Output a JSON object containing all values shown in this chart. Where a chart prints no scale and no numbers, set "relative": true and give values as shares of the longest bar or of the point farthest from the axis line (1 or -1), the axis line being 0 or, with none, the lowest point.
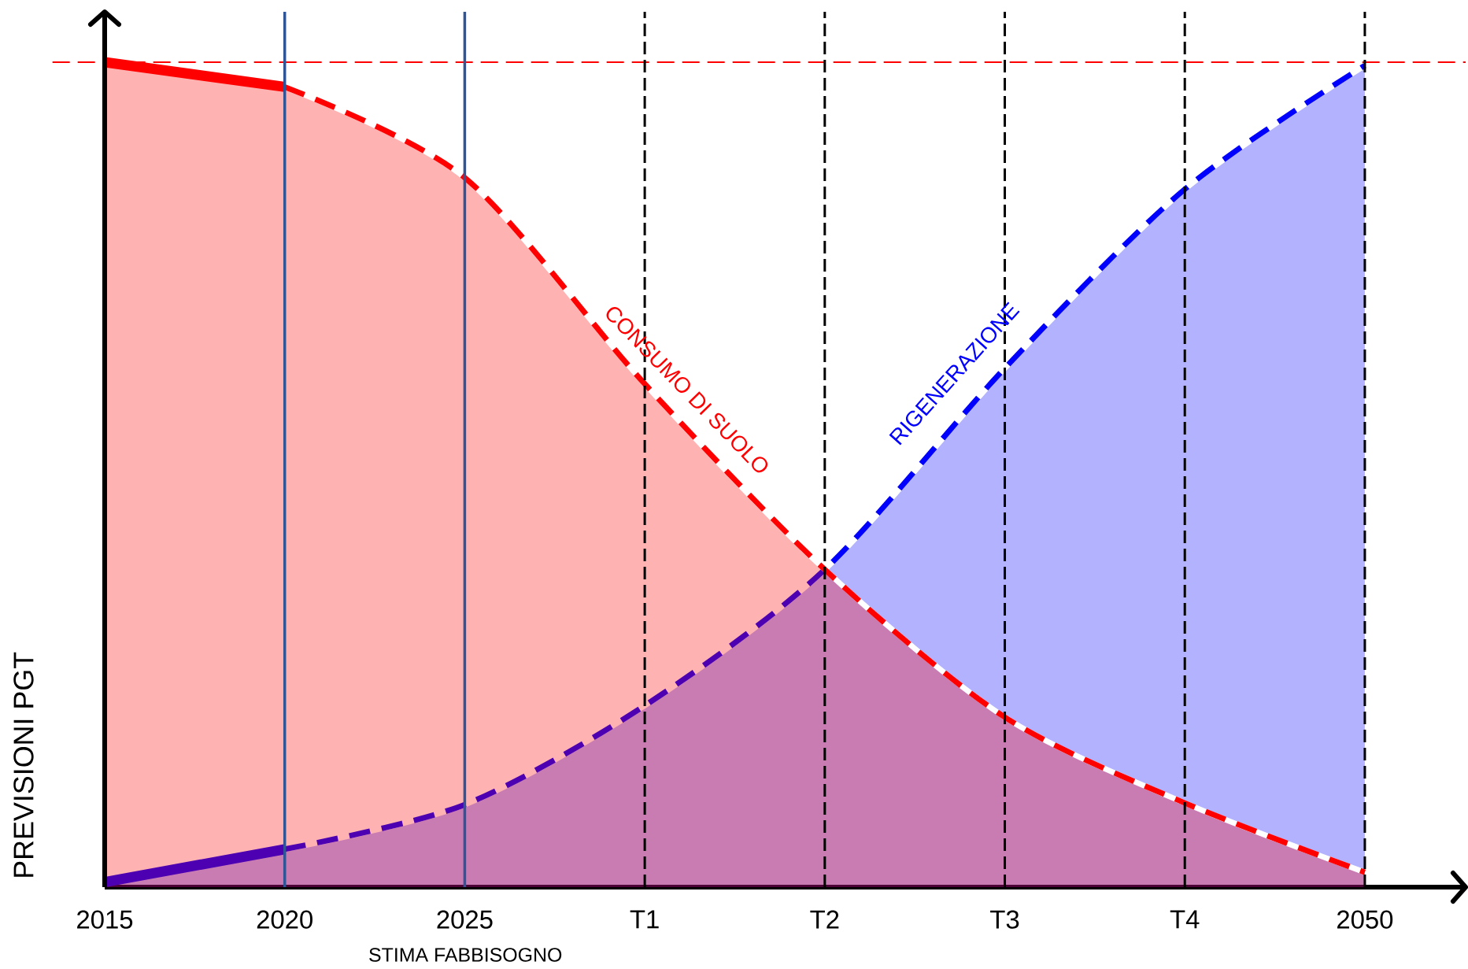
{
  "chart_data": {
    "type": "area",
    "relative": true,
    "tick_labels": "x",
    "ylabel": "PREVISIONI PGT",
    "categories": [
      "2015",
      "2020",
      "2025",
      "T1",
      "T2",
      "T3",
      "T4",
      "2050"
    ],
    "series": [
      {
        "color": "#0000ff",
        "line_style": "solid",
        "values": [
          0.006,
          0.046,
          null,
          null,
          null,
          null,
          null,
          null
        ]
      },
      {
        "name": "RIGENERAZIONE",
        "color": "#0000ff",
        "line_style": "dashed",
        "values": [
          null,
          0.046,
          0.1,
          0.22,
          0.385,
          0.629,
          0.846,
          0.996
        ]
      },
      {
        "color": "#ff0000",
        "line_style": "solid",
        "values": [
          1,
          0.97,
          null,
          null,
          null,
          null,
          null,
          null
        ]
      },
      {
        "name": "CONSUMO DI SUOLO",
        "color": "#ff0000",
        "line_style": "dashed",
        "values": [
          null,
          0.97,
          0.86,
          0.61,
          0.385,
          0.206,
          0.102,
          0.018
        ]
      }
    ],
    "ref_lines": [
      {
        "axis": "y",
        "value": 1,
        "color": "#ff0000",
        "line_style": "dashed"
      },
      {
        "axis": "x",
        "value": "2015",
        "color": "#000000",
        "line_style": "solid"
      },
      {
        "axis": "x",
        "value": "2020",
        "color": "#2f5597",
        "line_style": "solid"
      },
      {
        "axis": "x",
        "value": "2025",
        "color": "#2f5597",
        "line_style": "solid"
      },
      {
        "axis": "x",
        "value": "T1",
        "color": "#000000",
        "line_style": "dashed"
      },
      {
        "axis": "x",
        "value": "T2",
        "color": "#000000",
        "line_style": "dashed"
      },
      {
        "axis": "x",
        "value": "T3",
        "color": "#000000",
        "line_style": "dashed"
      },
      {
        "axis": "x",
        "value": "T4",
        "color": "#000000",
        "line_style": "dashed"
      },
      {
        "axis": "x",
        "value": "2050",
        "color": "#000000",
        "line_style": "dashed"
      }
    ],
    "annotations": [
      "STIMA FABBISOGNO"
    ]
  }
}
